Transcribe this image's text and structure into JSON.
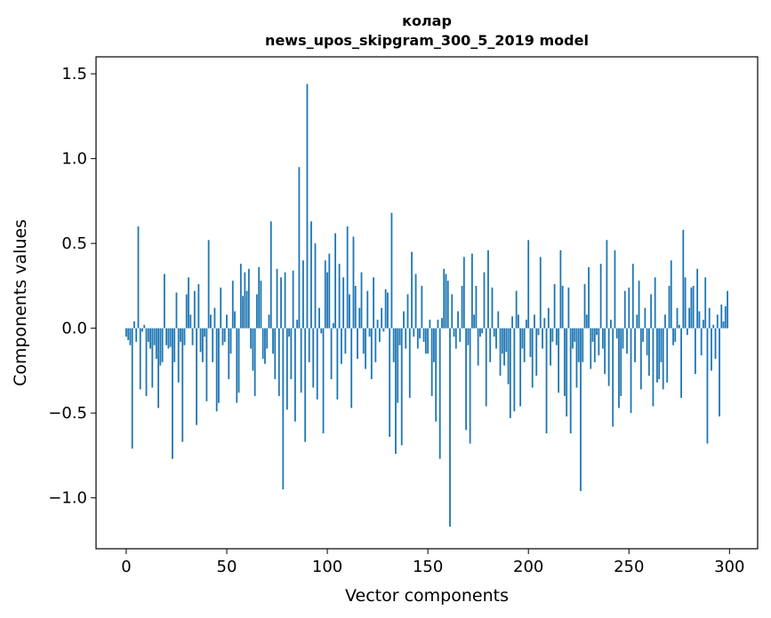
{
  "chart_data": {
    "type": "bar",
    "title": "колар",
    "subtitle": "news_upos_skipgram_300_5_2019 model",
    "xlabel": "Vector components",
    "ylabel": "Components values",
    "xlim": [
      -15,
      314
    ],
    "ylim": [
      -1.3,
      1.6
    ],
    "xticks": [
      0,
      50,
      100,
      150,
      200,
      250,
      300
    ],
    "xtick_labels": [
      "0",
      "50",
      "100",
      "150",
      "200",
      "250",
      "300"
    ],
    "yticks": [
      -1.0,
      -0.5,
      0.0,
      0.5,
      1.0,
      1.5
    ],
    "ytick_labels": [
      "−1.0",
      "−0.5",
      "0.0",
      "0.5",
      "1.0",
      "1.5"
    ],
    "bar_color": "#1f77b4",
    "grid": false,
    "x": "0..299 (component index)",
    "values": [
      -0.05,
      -0.07,
      -0.1,
      -0.71,
      0.04,
      -0.08,
      0.6,
      -0.36,
      -0.02,
      0.02,
      -0.4,
      -0.08,
      -0.12,
      -0.35,
      -0.1,
      -0.18,
      -0.47,
      -0.22,
      -0.2,
      0.32,
      -0.1,
      -0.12,
      -0.11,
      -0.77,
      -0.2,
      0.21,
      -0.32,
      -0.08,
      -0.67,
      -0.1,
      0.2,
      0.3,
      0.08,
      -0.1,
      0.22,
      -0.57,
      0.26,
      -0.14,
      -0.2,
      -0.05,
      -0.43,
      0.52,
      0.08,
      -0.2,
      0.12,
      -0.49,
      -0.44,
      0.24,
      -0.1,
      -0.08,
      0.08,
      -0.3,
      -0.15,
      0.28,
      0.1,
      -0.44,
      -0.38,
      0.38,
      0.19,
      0.33,
      0.22,
      0.35,
      -0.12,
      -0.25,
      -0.4,
      0.2,
      0.36,
      0.28,
      -0.18,
      -0.21,
      -0.12,
      0.08,
      0.63,
      -0.15,
      -0.3,
      0.35,
      -0.4,
      0.3,
      -0.95,
      0.33,
      -0.48,
      -0.05,
      -0.3,
      0.34,
      -0.55,
      0.05,
      0.95,
      -0.38,
      0.4,
      -0.67,
      1.44,
      -0.2,
      0.63,
      -0.35,
      0.5,
      -0.42,
      0.12,
      -0.03,
      -0.62,
      0.4,
      0.33,
      0.44,
      -0.3,
      0.03,
      0.56,
      -0.42,
      0.38,
      -0.21,
      0.3,
      -0.15,
      0.6,
      0.2,
      -0.47,
      0.54,
      0.25,
      -0.18,
      0.12,
      0.33,
      -0.15,
      -0.24,
      0.22,
      -0.05,
      -0.3,
      0.3,
      -0.2,
      0.05,
      -0.08,
      0.12,
      -0.02,
      0.23,
      0.21,
      -0.64,
      0.68,
      -0.2,
      -0.74,
      -0.44,
      -0.1,
      -0.69,
      0.1,
      -0.12,
      0.2,
      -0.41,
      0.45,
      -0.05,
      0.32,
      -0.12,
      -0.06,
      0.25,
      -0.08,
      -0.15,
      -0.15,
      0.05,
      -0.4,
      -0.2,
      -0.55,
      0.05,
      -0.77,
      0.06,
      0.35,
      0.32,
      0.28,
      -1.17,
      0.2,
      -0.05,
      -0.12,
      0.1,
      -0.08,
      0.25,
      0.42,
      -0.6,
      -0.1,
      -0.68,
      0.44,
      0.08,
      0.25,
      -0.22,
      -0.05,
      -0.03,
      0.33,
      -0.46,
      0.46,
      -0.2,
      0.24,
      -0.05,
      -0.12,
      0.1,
      -0.28,
      -0.15,
      -0.22,
      -0.14,
      -0.33,
      -0.53,
      0.07,
      -0.49,
      0.22,
      0.08,
      -0.46,
      -0.12,
      -0.2,
      0.05,
      0.52,
      -0.17,
      -0.35,
      0.08,
      -0.28,
      -0.04,
      0.42,
      -0.12,
      0.06,
      -0.62,
      0.12,
      -0.22,
      -0.08,
      0.26,
      -0.1,
      -0.38,
      0.46,
      0.25,
      -0.4,
      -0.52,
      0.24,
      -0.62,
      -0.12,
      -0.08,
      -0.35,
      -0.2,
      -0.96,
      -0.2,
      0.26,
      0.08,
      0.36,
      -0.24,
      -0.08,
      -0.2,
      -0.04,
      -0.16,
      0.38,
      -0.12,
      -0.27,
      0.52,
      -0.34,
      0.05,
      -0.58,
      0.46,
      -0.06,
      -0.47,
      -0.4,
      -0.12,
      0.22,
      -0.15,
      0.24,
      -0.5,
      0.38,
      -0.2,
      0.08,
      0.28,
      -0.36,
      -0.08,
      0.12,
      -0.16,
      -0.28,
      0.2,
      -0.46,
      0.3,
      -0.32,
      -0.3,
      -0.2,
      -0.36,
      0.08,
      -0.32,
      0.25,
      0.4,
      -0.1,
      -0.08,
      0.12,
      0.02,
      -0.41,
      0.58,
      0.3,
      -0.04,
      0.12,
      0.24,
      0.25,
      -0.27,
      0.35,
      0.1,
      -0.16,
      0.05,
      0.3,
      -0.68,
      0.12,
      -0.25,
      0.02,
      -0.18,
      0.08,
      -0.52,
      0.14,
      0.04,
      0.13,
      0.22
    ]
  }
}
